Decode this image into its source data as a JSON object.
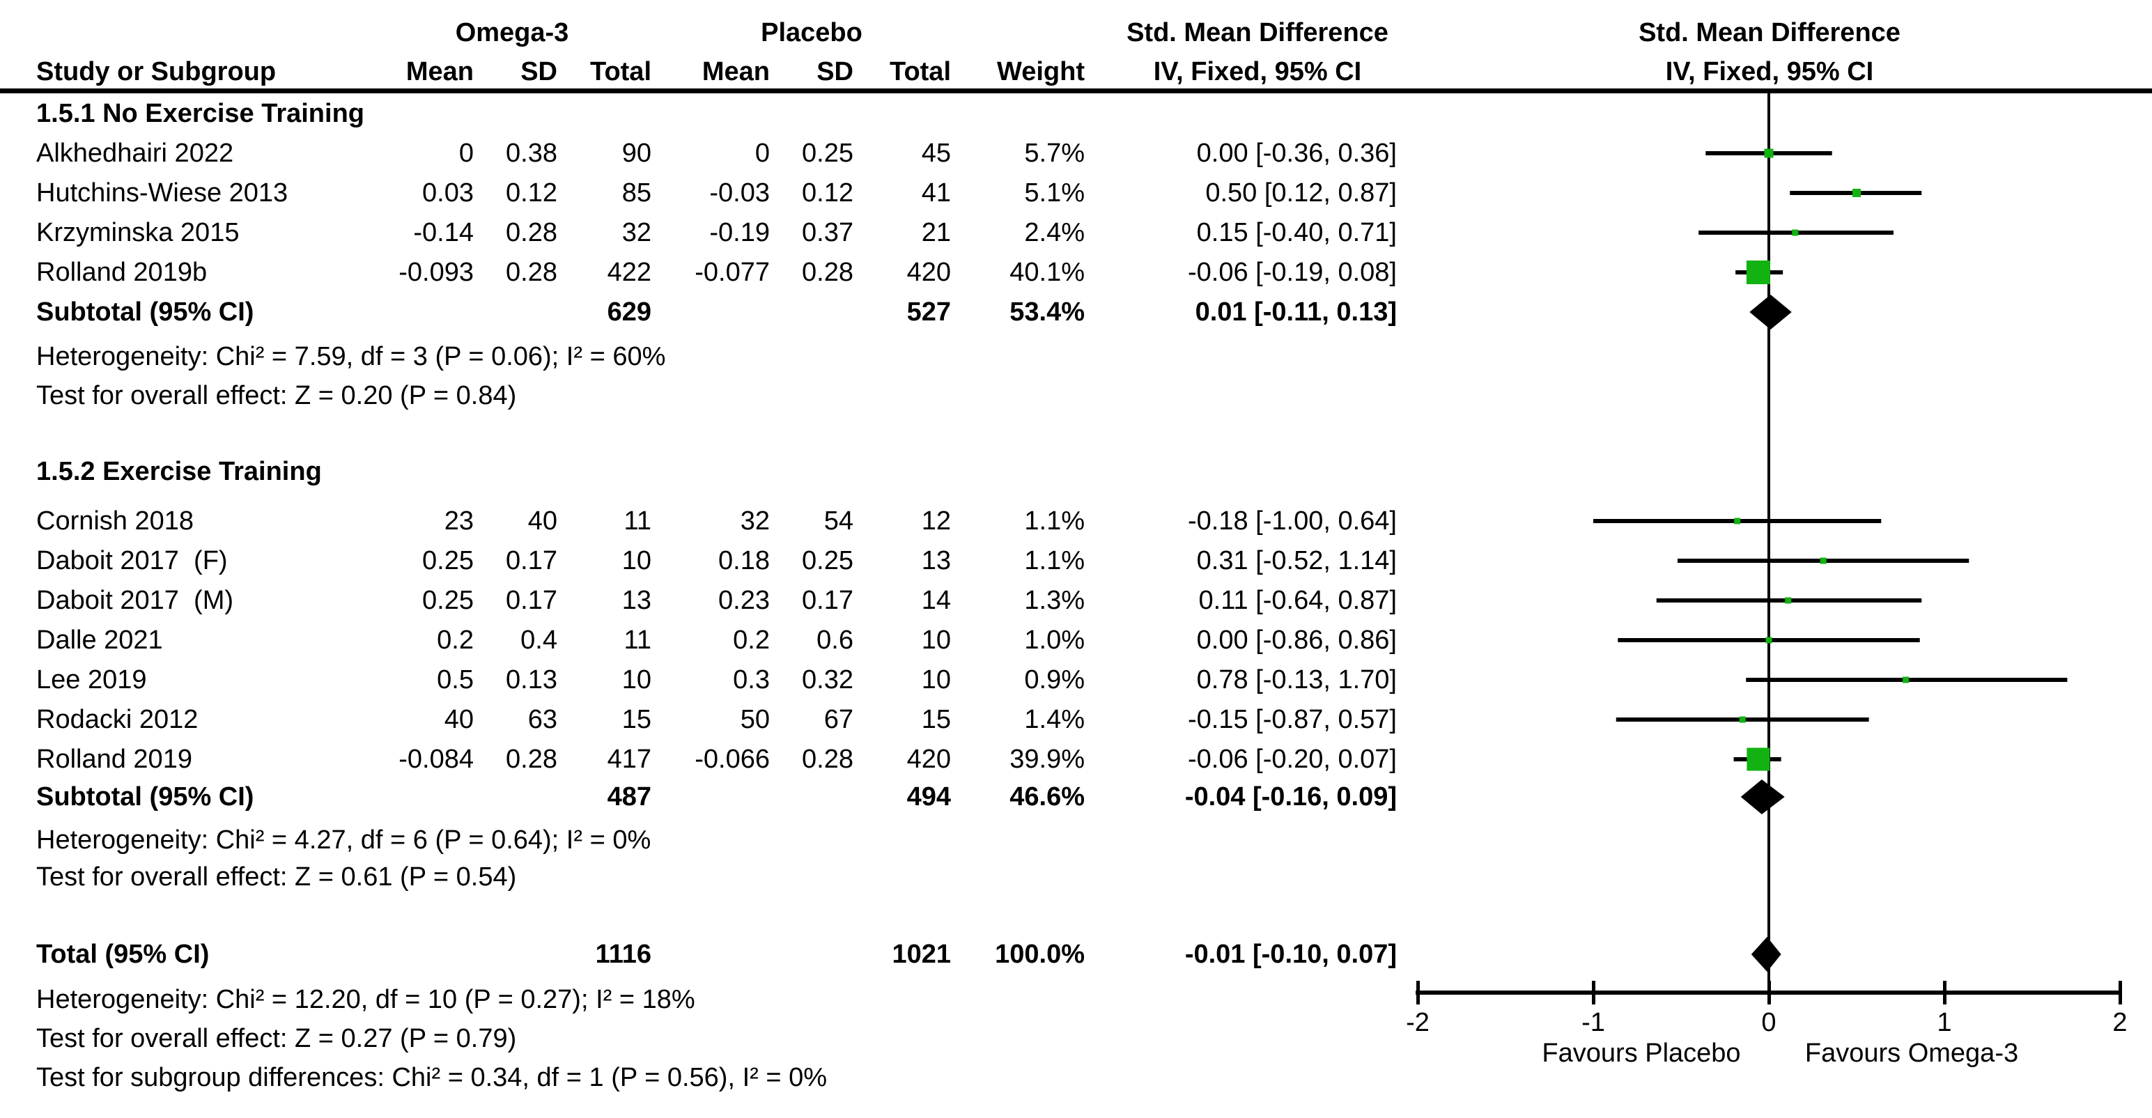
{
  "header": {
    "study_col": "Study or Subgroup",
    "group1": "Omega-3",
    "group2": "Placebo",
    "mean": "Mean",
    "sd": "SD",
    "total": "Total",
    "weight": "Weight",
    "effect_line1": "Std. Mean Difference",
    "effect_line2": "IV, Fixed, 95% CI",
    "plot_line1": "Std. Mean Difference",
    "plot_line2": "IV, Fixed, 95% CI"
  },
  "colors": {
    "marker_green": "#12b212",
    "diamond_black": "#000000",
    "line_black": "#000000",
    "text_black": "#000000"
  },
  "axis": {
    "tick_labels": [
      "-2",
      "-1",
      "0",
      "1",
      "2"
    ],
    "tick_values": [
      -2,
      -1,
      0,
      1,
      2
    ],
    "xlim": [
      -2,
      2
    ],
    "favours_left": "Favours Placebo",
    "favours_right": "Favours Omega-3"
  },
  "chart_data": {
    "type": "scatter",
    "subtype": "forest-plot-fixed-effect",
    "title": "Std. Mean Difference, IV, Fixed, 95% CI — Omega-3 vs Placebo",
    "effect_measure": "Std. Mean Difference",
    "method": "IV, Fixed, 95% CI",
    "xlim": [
      -2,
      2
    ],
    "x_ticks": [
      -2,
      -1,
      0,
      1,
      2
    ],
    "favours_left": "Favours Placebo",
    "favours_right": "Favours Omega-3",
    "groups": [
      "Omega-3",
      "Placebo"
    ],
    "sections": [
      {
        "title": "1.5.1 No Exercise Training",
        "studies": [
          {
            "study": "Alkhedhairi 2022",
            "mean1": "0",
            "sd1": "0.38",
            "total1": "90",
            "mean2": "0",
            "sd2": "0.25",
            "total2": "45",
            "weight": "5.7%",
            "weight_pct": 5.7,
            "ci_text": "0.00 [-0.36, 0.36]",
            "est": 0.0,
            "lo": -0.36,
            "hi": 0.36
          },
          {
            "study": "Hutchins-Wiese 2013",
            "mean1": "0.03",
            "sd1": "0.12",
            "total1": "85",
            "mean2": "-0.03",
            "sd2": "0.12",
            "total2": "41",
            "weight": "5.1%",
            "weight_pct": 5.1,
            "ci_text": "0.50 [0.12, 0.87]",
            "est": 0.5,
            "lo": 0.12,
            "hi": 0.87
          },
          {
            "study": "Krzyminska 2015",
            "mean1": "-0.14",
            "sd1": "0.28",
            "total1": "32",
            "mean2": "-0.19",
            "sd2": "0.37",
            "total2": "21",
            "weight": "2.4%",
            "weight_pct": 2.4,
            "ci_text": "0.15 [-0.40, 0.71]",
            "est": 0.15,
            "lo": -0.4,
            "hi": 0.71
          },
          {
            "study": "Rolland 2019b",
            "mean1": "-0.093",
            "sd1": "0.28",
            "total1": "422",
            "mean2": "-0.077",
            "sd2": "0.28",
            "total2": "420",
            "weight": "40.1%",
            "weight_pct": 40.1,
            "ci_text": "-0.06 [-0.19, 0.08]",
            "est": -0.06,
            "lo": -0.19,
            "hi": 0.08
          }
        ],
        "subtotal": {
          "label": "Subtotal (95% CI)",
          "total1": "629",
          "total2": "527",
          "weight": "53.4%",
          "ci_text": "0.01 [-0.11, 0.13]",
          "est": 0.01,
          "lo": -0.11,
          "hi": 0.13
        },
        "heterogeneity": "Heterogeneity: Chi² = 7.59, df = 3 (P = 0.06); I² = 60%",
        "overall_effect": "Test for overall effect: Z = 0.20 (P = 0.84)"
      },
      {
        "title": "1.5.2 Exercise Training",
        "studies": [
          {
            "study": "Cornish 2018",
            "mean1": "23",
            "sd1": "40",
            "total1": "11",
            "mean2": "32",
            "sd2": "54",
            "total2": "12",
            "weight": "1.1%",
            "weight_pct": 1.1,
            "ci_text": "-0.18 [-1.00, 0.64]",
            "est": -0.18,
            "lo": -1.0,
            "hi": 0.64
          },
          {
            "study": "Daboit 2017  (F)",
            "mean1": "0.25",
            "sd1": "0.17",
            "total1": "10",
            "mean2": "0.18",
            "sd2": "0.25",
            "total2": "13",
            "weight": "1.1%",
            "weight_pct": 1.1,
            "ci_text": "0.31 [-0.52, 1.14]",
            "est": 0.31,
            "lo": -0.52,
            "hi": 1.14
          },
          {
            "study": "Daboit 2017  (M)",
            "mean1": "0.25",
            "sd1": "0.17",
            "total1": "13",
            "mean2": "0.23",
            "sd2": "0.17",
            "total2": "14",
            "weight": "1.3%",
            "weight_pct": 1.3,
            "ci_text": "0.11 [-0.64, 0.87]",
            "est": 0.11,
            "lo": -0.64,
            "hi": 0.87
          },
          {
            "study": "Dalle 2021",
            "mean1": "0.2",
            "sd1": "0.4",
            "total1": "11",
            "mean2": "0.2",
            "sd2": "0.6",
            "total2": "10",
            "weight": "1.0%",
            "weight_pct": 1.0,
            "ci_text": "0.00 [-0.86, 0.86]",
            "est": 0.0,
            "lo": -0.86,
            "hi": 0.86
          },
          {
            "study": "Lee 2019",
            "mean1": "0.5",
            "sd1": "0.13",
            "total1": "10",
            "mean2": "0.3",
            "sd2": "0.32",
            "total2": "10",
            "weight": "0.9%",
            "weight_pct": 0.9,
            "ci_text": "0.78 [-0.13, 1.70]",
            "est": 0.78,
            "lo": -0.13,
            "hi": 1.7
          },
          {
            "study": "Rodacki 2012",
            "mean1": "40",
            "sd1": "63",
            "total1": "15",
            "mean2": "50",
            "sd2": "67",
            "total2": "15",
            "weight": "1.4%",
            "weight_pct": 1.4,
            "ci_text": "-0.15 [-0.87, 0.57]",
            "est": -0.15,
            "lo": -0.87,
            "hi": 0.57
          },
          {
            "study": "Rolland 2019",
            "mean1": "-0.084",
            "sd1": "0.28",
            "total1": "417",
            "mean2": "-0.066",
            "sd2": "0.28",
            "total2": "420",
            "weight": "39.9%",
            "weight_pct": 39.9,
            "ci_text": "-0.06 [-0.20, 0.07]",
            "est": -0.06,
            "lo": -0.2,
            "hi": 0.07
          }
        ],
        "subtotal": {
          "label": "Subtotal (95% CI)",
          "total1": "487",
          "total2": "494",
          "weight": "46.6%",
          "ci_text": "-0.04 [-0.16, 0.09]",
          "est": -0.04,
          "lo": -0.16,
          "hi": 0.09
        },
        "heterogeneity": "Heterogeneity: Chi² = 4.27, df = 6 (P = 0.64); I² = 0%",
        "overall_effect": "Test for overall effect: Z = 0.61 (P = 0.54)"
      }
    ],
    "total": {
      "label": "Total (95% CI)",
      "total1": "1116",
      "total2": "1021",
      "weight": "100.0%",
      "ci_text": "-0.01 [-0.10, 0.07]",
      "est": -0.01,
      "lo": -0.1,
      "hi": 0.07
    },
    "footnotes": [
      "Heterogeneity: Chi² = 12.20, df = 10 (P = 0.27); I² = 18%",
      "Test for overall effect: Z = 0.27 (P = 0.79)",
      "Test for subgroup differences: Chi² = 0.34, df = 1 (P = 0.56), I² = 0%"
    ]
  }
}
